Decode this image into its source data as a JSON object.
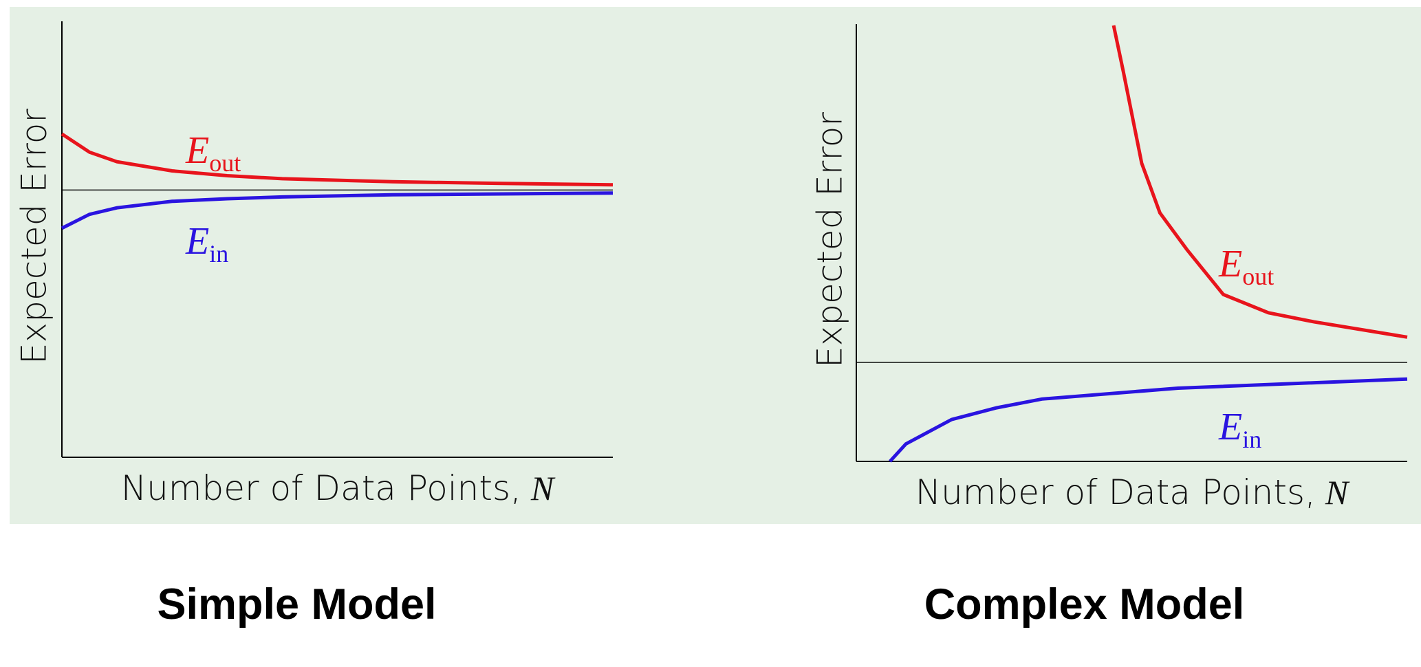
{
  "chart_data": [
    {
      "type": "line",
      "title": "Simple Model",
      "x_label": "Number of Data Points,",
      "x_label_var": "N",
      "y_label": "Expected Error",
      "xlim": [
        0,
        100
      ],
      "ylim": [
        0,
        100
      ],
      "reference_line": 61.5,
      "series": [
        {
          "name": "E",
          "subscript": "out",
          "color": "#e8141c",
          "x": [
            0,
            5,
            10,
            20,
            30,
            40,
            60,
            80,
            100
          ],
          "values": [
            74.4,
            70.2,
            68.0,
            65.9,
            64.8,
            64.1,
            63.4,
            63.0,
            62.7
          ]
        },
        {
          "name": "E",
          "subscript": "in",
          "color": "#2a14e0",
          "x": [
            0,
            5,
            10,
            20,
            30,
            40,
            60,
            80,
            100
          ],
          "values": [
            52.7,
            55.9,
            57.4,
            58.9,
            59.5,
            59.9,
            60.4,
            60.6,
            60.8
          ]
        }
      ]
    },
    {
      "type": "line",
      "title": "Complex Model",
      "x_label": "Number of Data Points,",
      "x_label_var": "N",
      "y_label": "Expected Error",
      "xlim": [
        0,
        100
      ],
      "ylim": [
        0,
        100
      ],
      "reference_line": 22.7,
      "series": [
        {
          "name": "E",
          "subscript": "out",
          "color": "#e8141c",
          "x": [
            46.7,
            48.5,
            51.8,
            55.1,
            60,
            66.6,
            74.8,
            83.1,
            100
          ],
          "values": [
            100,
            89.2,
            68.4,
            57.0,
            48.6,
            38.3,
            34.1,
            32.0,
            28.5
          ]
        },
        {
          "name": "E",
          "subscript": "in",
          "color": "#2a14e0",
          "x": [
            6.1,
            9.0,
            17.3,
            25.5,
            33.7,
            58.4,
            100
          ],
          "values": [
            0,
            4.0,
            9.6,
            12.3,
            14.3,
            16.8,
            18.9
          ]
        }
      ]
    }
  ]
}
